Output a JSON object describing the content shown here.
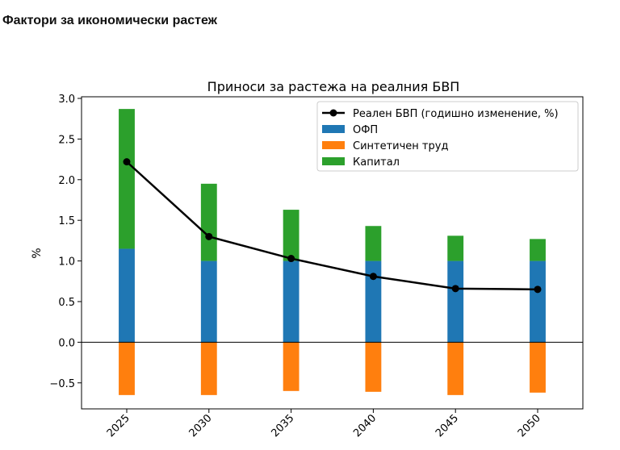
{
  "page": {
    "title": "Фактори за икономически растеж"
  },
  "chart_data": {
    "type": "bar",
    "title": "Приноси за растежа на реалния БВП",
    "xlabel": "",
    "ylabel": "%",
    "categories": [
      "2025",
      "2030",
      "2035",
      "2040",
      "2045",
      "2050"
    ],
    "ylim": [
      -0.82,
      3.02
    ],
    "yticks": [
      "−0.5",
      "0.0",
      "0.5",
      "1.0",
      "1.5",
      "2.0",
      "2.5",
      "3.0"
    ],
    "ytick_values": [
      -0.5,
      0.0,
      0.5,
      1.0,
      1.5,
      2.0,
      2.5,
      3.0
    ],
    "stacked": true,
    "grid": false,
    "legend_position": "top-right",
    "series": [
      {
        "name": "ОФП",
        "kind": "bar",
        "color": "#1f77b4",
        "values": [
          1.15,
          1.0,
          1.0,
          1.0,
          1.0,
          1.0
        ]
      },
      {
        "name": "Синтетичен труд",
        "kind": "bar",
        "color": "#ff7f0e",
        "values": [
          -0.65,
          -0.65,
          -0.6,
          -0.61,
          -0.65,
          -0.62
        ]
      },
      {
        "name": "Капитал",
        "kind": "bar",
        "color": "#2ca02c",
        "values": [
          1.72,
          0.95,
          0.63,
          0.43,
          0.31,
          0.27
        ]
      },
      {
        "name": "Реален БВП (годишно изменение, %)",
        "kind": "line",
        "color": "#000000",
        "values": [
          2.22,
          1.3,
          1.03,
          0.81,
          0.66,
          0.65
        ]
      }
    ],
    "legend_order": [
      "Реален БВП (годишно изменение, %)",
      "ОФП",
      "Синтетичен труд",
      "Капитал"
    ]
  }
}
